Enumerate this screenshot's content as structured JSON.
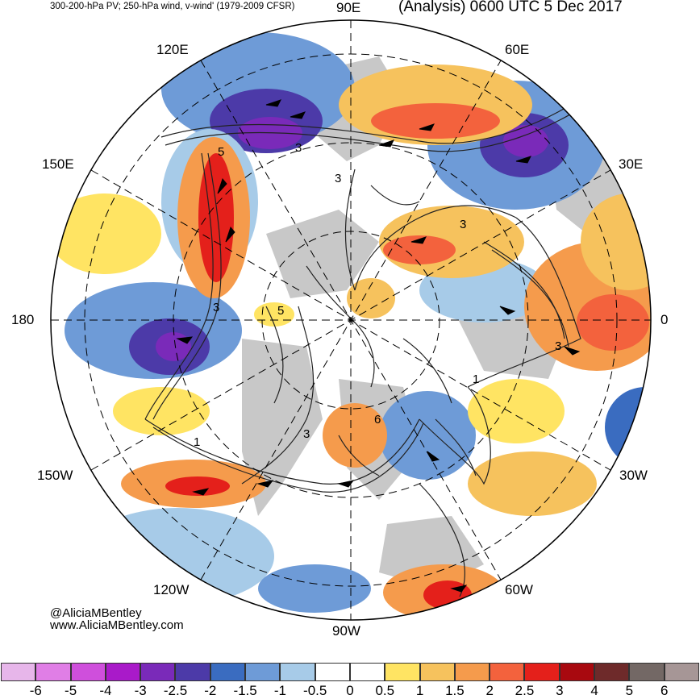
{
  "header": {
    "left_title": "300-200-hPa PV; 250-hPa wind, v-wind' (1979-2009 CFSR)",
    "right_title": "(Analysis) 0600 UTC 5 Dec 2017"
  },
  "map": {
    "projection": "north-polar-stereographic",
    "longitude_labels": {
      "lon_90E": "90E",
      "lon_60E": "60E",
      "lon_30E": "30E",
      "lon_0": "0",
      "lon_30W": "30W",
      "lon_60W": "60W",
      "lon_90W": "90W",
      "lon_120W": "120W",
      "lon_150W": "150W",
      "lon_180": "180",
      "lon_150E": "150E",
      "lon_120E": "120E"
    },
    "contour_labels": [
      "3",
      "3",
      "3",
      "3",
      "3",
      "3",
      "5",
      "5",
      "1",
      "1",
      "6"
    ]
  },
  "credit": {
    "line1": "@AliciaMBentley",
    "line2": "www.AliciaMBentley.com"
  },
  "colorbar": {
    "colors": [
      "#e7b6ea",
      "#e07ee6",
      "#cf4fdc",
      "#a91ac9",
      "#7a2ab9",
      "#4c3aa8",
      "#3a6cc0",
      "#6e9bd7",
      "#a7cbe8",
      "#ffffff",
      "#ffffff",
      "#ffe463",
      "#f6c25d",
      "#f59b4c",
      "#f3623d",
      "#e4201b",
      "#a8090f",
      "#6e2a2a",
      "#736865",
      "#a69696"
    ],
    "tick_labels": [
      "-6",
      "-5",
      "-4",
      "-3",
      "-2.5",
      "-2",
      "-1.5",
      "-1",
      "-0.5",
      "0",
      "0.5",
      "1",
      "1.5",
      "2",
      "2.5",
      "3",
      "4",
      "5",
      "6"
    ]
  }
}
